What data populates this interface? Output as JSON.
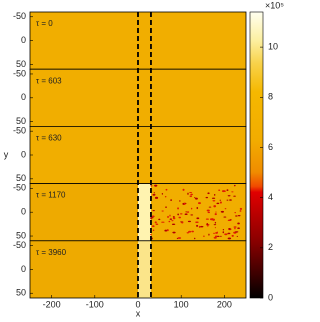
{
  "chart_data": {
    "type": "heatmap",
    "xlabel": "x",
    "ylabel": "y",
    "xlim": [
      -250,
      250
    ],
    "xticks": [
      -200,
      -100,
      0,
      100,
      200
    ],
    "ylim": [
      -60,
      60
    ],
    "yticks": [
      -50,
      0,
      50
    ],
    "y_reversed": true,
    "panels": [
      {
        "label": "τ = 0"
      },
      {
        "label": "τ = 603"
      },
      {
        "label": "τ = 630"
      },
      {
        "label": "τ = 1170"
      },
      {
        "label": "τ = 3960"
      }
    ],
    "dashed_lines": [
      0,
      30
    ],
    "colorbar": {
      "lim": [
        0,
        11.4
      ],
      "ticks": [
        0,
        2,
        4,
        6,
        8,
        10
      ],
      "scale_label": "×10⁵"
    }
  }
}
